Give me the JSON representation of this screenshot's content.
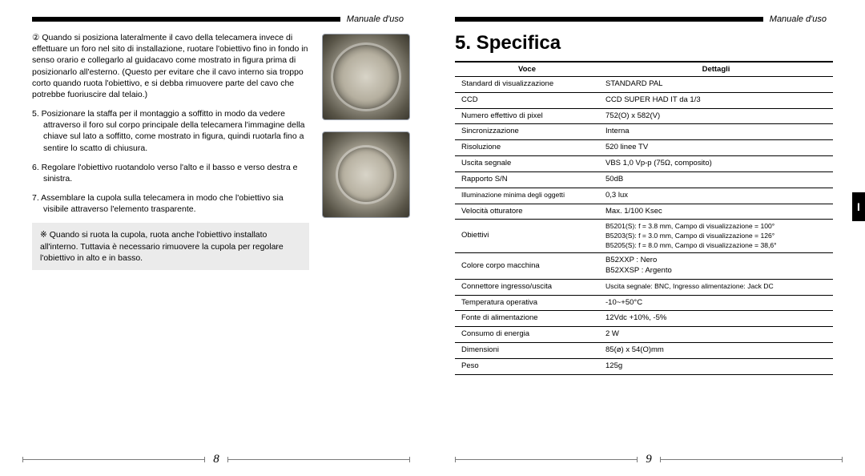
{
  "header_label": "Manuale d'uso",
  "left": {
    "para_note2": "② Quando si posiziona lateralmente il cavo della telecamera invece di effettuare un foro nel sito di installazione, ruotare l'obiettivo fino in fondo in senso orario e collegarlo al guidacavo come mostrato in figura prima di posizionarlo all'esterno. (Questo per evitare che il cavo interno sia troppo corto quando ruota l'obiettivo, e si debba rimuovere parte del cavo che potrebbe fuoriuscire dal telaio.)",
    "step5": "5.  Posizionare la staffa per il montaggio a soffitto in modo da vedere attraverso il foro sul corpo principale della telecamera l'immagine della chiave sul lato a soffitto, come mostrato in figura, quindi ruotarla fino a sentire lo scatto di chiusura.",
    "step6": "6.  Regolare l'obiettivo ruotandolo verso l'alto e il basso e verso destra e sinistra.",
    "step7": "7. Assemblare la cupola sulla telecamera in modo che l'obiettivo sia visibile attraverso l'elemento trasparente.",
    "notebox": "※ Quando si ruota la cupola, ruota anche l'obiettivo installato all'interno. Tuttavia è necessario rimuovere la cupola per regolare l'obiettivo in alto e in basso.",
    "page_num": "8"
  },
  "right": {
    "title": "5. Specifica",
    "th_voce": "Voce",
    "th_dettagli": "Dettagli",
    "rows": {
      "r0l": "Standard di visualizzazione",
      "r0v": "STANDARD PAL",
      "r1l": "CCD",
      "r1v": "CCD SUPER HAD IT da 1/3",
      "r2l": "Numero effettivo di pixel",
      "r2v": "752(O) x 582(V)",
      "r3l": "Sincronizzazione",
      "r3v": "Interna",
      "r4l": "Risoluzione",
      "r4v": "520 linee TV",
      "r5l": "Uscita segnale",
      "r5v": "VBS 1,0 Vp-p (75Ω, composito)",
      "r6l": "Rapporto S/N",
      "r6v": "50dB",
      "r7l": "Illuminazione minima degli oggetti",
      "r7v": "0,3 lux",
      "r8l": "Velocità otturatore",
      "r8v": "Max. 1/100 Ksec",
      "r9l": "Obiettivi",
      "r9v": "B5201(S): f = 3.8 mm, Campo di visualizzazione = 100°\nB5203(S): f = 3.0 mm, Campo di visualizzazione = 126°\nB5205(S): f = 8.0 mm, Campo di visualizzazione = 38,6°",
      "r10l": "Colore corpo macchina",
      "r10v": "B52XXP   : Nero\nB52XXSP : Argento",
      "r11l": "Connettore ingresso/uscita",
      "r11v": "Uscita segnale: BNC, Ingresso alimentazione: Jack DC",
      "r12l": "Temperatura operativa",
      "r12v": "-10~+50°C",
      "r13l": "Fonte di alimentazione",
      "r13v": "12Vdc +10%, -5%",
      "r14l": "Consumo di energia",
      "r14v": "2 W",
      "r15l": "Dimensioni",
      "r15v": "85(ø) x 54(O)mm",
      "r16l": "Peso",
      "r16v": "125g"
    },
    "tab": "I",
    "page_num": "9"
  },
  "colors": {
    "bg": "#000000",
    "page": "#ffffff",
    "notebox": "#ebebeb",
    "rule": "#000000"
  }
}
